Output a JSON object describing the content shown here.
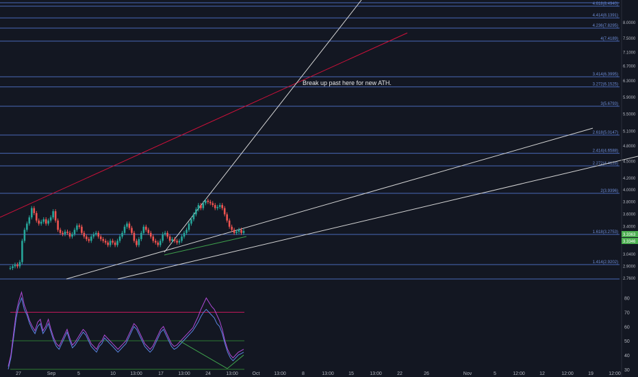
{
  "chart_data": [
    {
      "type": "line",
      "panel": "price",
      "ylim": [
        2.78,
        8.6
      ],
      "ytick_labels": [
        "8.5000",
        "8.0000",
        "7.5000",
        "7.1000",
        "6.7000",
        "6.3000",
        "5.9000",
        "5.5000",
        "5.1000",
        "4.8000",
        "4.5000",
        "4.2000",
        "4.0000",
        "3.8000",
        "3.6000",
        "3.4000",
        "3.0400",
        "2.9000",
        "2.7600"
      ],
      "y_ticks": [
        8.5,
        8.0,
        7.5,
        7.1,
        6.7,
        6.3,
        5.9,
        5.5,
        5.1,
        4.8,
        4.5,
        4.2,
        4.0,
        3.8,
        3.6,
        3.4,
        3.04,
        2.9,
        2.76
      ],
      "last_price_labels": [
        "3.3363",
        "3.3346"
      ],
      "fib_levels": [
        {
          "label": "4.618(8.4940)",
          "value": 8.494
        },
        {
          "label": "4.414(8.1391)",
          "value": 8.1391
        },
        {
          "label": "4.236(7.8295)",
          "value": 7.8295
        },
        {
          "label": "4(7.4189)",
          "value": 7.4189
        },
        {
          "label": "3.414(6.3995)",
          "value": 6.3995
        },
        {
          "label": "3.272(6.1525)",
          "value": 6.1525
        },
        {
          "label": "3(5.6793)",
          "value": 5.6793
        },
        {
          "label": "2.618(5.0147)",
          "value": 5.0147
        },
        {
          "label": "2.414(4.6588)",
          "value": 4.6588
        },
        {
          "label": "2.272(4.4128)",
          "value": 4.4128
        },
        {
          "label": "2(3.9396)",
          "value": 3.9396
        },
        {
          "label": "1.618(3.2753)",
          "value": 3.2753
        },
        {
          "label": "1.414(2.9202)",
          "value": 2.9202
        }
      ],
      "annotation": "Break up past here for new ATH.",
      "price": [
        2.88,
        2.9,
        2.92,
        2.9,
        2.95,
        3.2,
        3.35,
        3.45,
        3.55,
        3.7,
        3.62,
        3.5,
        3.45,
        3.48,
        3.52,
        3.45,
        3.5,
        3.55,
        3.65,
        3.5,
        3.35,
        3.3,
        3.28,
        3.32,
        3.3,
        3.25,
        3.28,
        3.35,
        3.42,
        3.4,
        3.3,
        3.25,
        3.22,
        3.2,
        3.25,
        3.28,
        3.3,
        3.25,
        3.22,
        3.2,
        3.18,
        3.15,
        3.2,
        3.18,
        3.15,
        3.2,
        3.25,
        3.3,
        3.4,
        3.45,
        3.38,
        3.3,
        3.2,
        3.15,
        3.22,
        3.3,
        3.4,
        3.35,
        3.3,
        3.25,
        3.2,
        3.18,
        3.15,
        3.2,
        3.28,
        3.3,
        3.25,
        3.2,
        3.22,
        3.2,
        3.18,
        3.2,
        3.25,
        3.3,
        3.35,
        3.45,
        3.52,
        3.6,
        3.68,
        3.75,
        3.7,
        3.78,
        3.82,
        3.8,
        3.78,
        3.75,
        3.7,
        3.72,
        3.75,
        3.7,
        3.6,
        3.5,
        3.4,
        3.35,
        3.3,
        3.32,
        3.35,
        3.3,
        3.33
      ]
    },
    {
      "type": "line",
      "panel": "rsi",
      "ylim": [
        27,
        88
      ],
      "ytick_labels": [
        "80",
        "70",
        "60",
        "50",
        "40",
        "30"
      ],
      "y_ticks": [
        80,
        70,
        60,
        50,
        40,
        30
      ],
      "bands": [
        70,
        50,
        30
      ],
      "series": [
        {
          "values": [
            30,
            38,
            52,
            66,
            75,
            80,
            72,
            68,
            62,
            58,
            55,
            60,
            62,
            55,
            58,
            62,
            56,
            50,
            46,
            44,
            48,
            52,
            56,
            50,
            45,
            47,
            50,
            53,
            56,
            54,
            50,
            46,
            44,
            42,
            46,
            48,
            52,
            50,
            48,
            46,
            44,
            42,
            44,
            46,
            48,
            52,
            56,
            60,
            58,
            54,
            50,
            46,
            44,
            42,
            44,
            48,
            52,
            56,
            58,
            54,
            50,
            46,
            44,
            45,
            47,
            49,
            51,
            53,
            55,
            57,
            60,
            63,
            67,
            70,
            72,
            70,
            68,
            66,
            62,
            60,
            55,
            48,
            42,
            38,
            36,
            38,
            40,
            41,
            42
          ]
        },
        {
          "values": [
            32,
            40,
            55,
            70,
            78,
            84,
            75,
            70,
            64,
            60,
            57,
            63,
            65,
            57,
            60,
            65,
            58,
            52,
            48,
            46,
            50,
            54,
            58,
            52,
            47,
            49,
            52,
            55,
            58,
            56,
            52,
            48,
            46,
            44,
            48,
            50,
            54,
            52,
            50,
            48,
            46,
            44,
            46,
            48,
            50,
            54,
            58,
            62,
            60,
            56,
            52,
            48,
            46,
            44,
            46,
            50,
            54,
            58,
            60,
            56,
            52,
            48,
            46,
            47,
            49,
            51,
            53,
            55,
            57,
            59,
            63,
            67,
            72,
            76,
            80,
            77,
            74,
            72,
            68,
            64,
            58,
            50,
            44,
            40,
            38,
            40,
            42,
            43,
            44
          ]
        }
      ]
    }
  ],
  "x_tick_labels": [
    "27",
    "Sep",
    "5",
    "10",
    "13:00",
    "17",
    "13:00",
    "24",
    "13:00",
    "Oct",
    "13:00",
    "8",
    "13:00",
    "15",
    "13:00",
    "22",
    "26",
    "Nov",
    "5",
    "12:00",
    "12",
    "12:00",
    "19",
    "12:00"
  ]
}
